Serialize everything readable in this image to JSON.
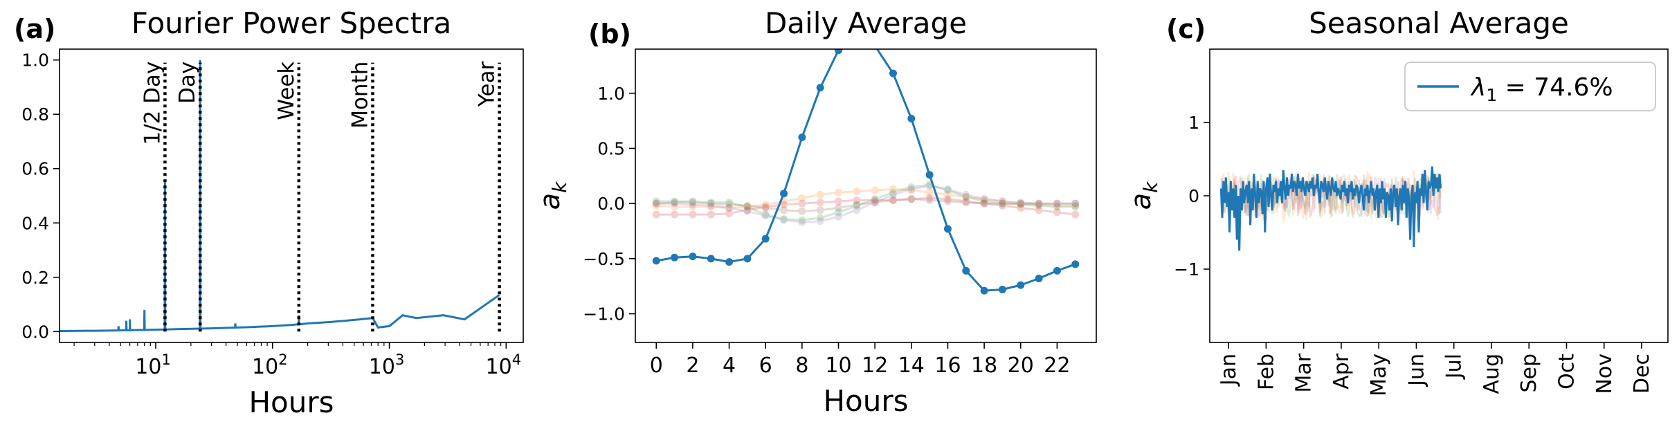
{
  "chart_data": [
    {
      "type": "line",
      "panel_label": "(a)",
      "title": "Fourier Power Spectra",
      "xlabel": "Hours",
      "ylabel": "",
      "xscale": "log",
      "xlim": [
        1.5,
        14000
      ],
      "ylim": [
        -0.04,
        1.04
      ],
      "xticks": [
        {
          "v": 10,
          "base": "10",
          "exp": "1"
        },
        {
          "v": 100,
          "base": "10",
          "exp": "2"
        },
        {
          "v": 1000,
          "base": "10",
          "exp": "3"
        },
        {
          "v": 10000,
          "base": "10",
          "exp": "4"
        }
      ],
      "yticks": [
        {
          "v": 0.0,
          "label": "0.0"
        },
        {
          "v": 0.2,
          "label": "0.2"
        },
        {
          "v": 0.4,
          "label": "0.4"
        },
        {
          "v": 0.6,
          "label": "0.6"
        },
        {
          "v": 0.8,
          "label": "0.8"
        },
        {
          "v": 1.0,
          "label": "1.0"
        }
      ],
      "color": "#1f77b4",
      "vlines": [
        {
          "x": 12,
          "label": "1/2 Day"
        },
        {
          "x": 24,
          "label": "Day"
        },
        {
          "x": 168,
          "label": "Week"
        },
        {
          "x": 720,
          "label": "Month"
        },
        {
          "x": 8760,
          "label": "Year"
        }
      ],
      "spikes": [
        {
          "x": 4.8,
          "y": 0.02
        },
        {
          "x": 5.6,
          "y": 0.04
        },
        {
          "x": 6.0,
          "y": 0.045
        },
        {
          "x": 8.0,
          "y": 0.08
        },
        {
          "x": 12,
          "y": 0.55
        },
        {
          "x": 24,
          "y": 1.0
        },
        {
          "x": 48,
          "y": 0.03
        },
        {
          "x": 168,
          "y": 0.06
        }
      ],
      "envelope": [
        {
          "x": 1.5,
          "y": 0.002
        },
        {
          "x": 3,
          "y": 0.003
        },
        {
          "x": 6,
          "y": 0.005
        },
        {
          "x": 10,
          "y": 0.007
        },
        {
          "x": 15,
          "y": 0.009
        },
        {
          "x": 30,
          "y": 0.012
        },
        {
          "x": 60,
          "y": 0.016
        },
        {
          "x": 100,
          "y": 0.02
        },
        {
          "x": 150,
          "y": 0.025
        },
        {
          "x": 200,
          "y": 0.03
        },
        {
          "x": 300,
          "y": 0.035
        },
        {
          "x": 420,
          "y": 0.04
        },
        {
          "x": 560,
          "y": 0.045
        },
        {
          "x": 720,
          "y": 0.05
        },
        {
          "x": 800,
          "y": 0.015
        },
        {
          "x": 1000,
          "y": 0.02
        },
        {
          "x": 1300,
          "y": 0.06
        },
        {
          "x": 1700,
          "y": 0.05
        },
        {
          "x": 2900,
          "y": 0.06
        },
        {
          "x": 4400,
          "y": 0.045
        },
        {
          "x": 8760,
          "y": 0.135
        }
      ]
    },
    {
      "type": "line",
      "panel_label": "(b)",
      "title": "Daily Average",
      "xlabel": "Hours",
      "ylabel": "a_k",
      "xlim": [
        -1.15,
        24.15
      ],
      "ylim": [
        -1.26,
        1.4
      ],
      "xticks": [
        {
          "v": 0,
          "label": "0"
        },
        {
          "v": 2,
          "label": "2"
        },
        {
          "v": 4,
          "label": "4"
        },
        {
          "v": 6,
          "label": "6"
        },
        {
          "v": 8,
          "label": "8"
        },
        {
          "v": 10,
          "label": "10"
        },
        {
          "v": 12,
          "label": "12"
        },
        {
          "v": 14,
          "label": "14"
        },
        {
          "v": 16,
          "label": "16"
        },
        {
          "v": 18,
          "label": "18"
        },
        {
          "v": 20,
          "label": "20"
        },
        {
          "v": 22,
          "label": "22"
        }
      ],
      "yticks": [
        {
          "v": -1.0,
          "label": "−1.0"
        },
        {
          "v": -0.5,
          "label": "−0.5"
        },
        {
          "v": 0.0,
          "label": "0.0"
        },
        {
          "v": 0.5,
          "label": "0.5"
        },
        {
          "v": 1.0,
          "label": "1.0"
        }
      ],
      "x": [
        0,
        1,
        2,
        3,
        4,
        5,
        6,
        7,
        8,
        9,
        10,
        11,
        12,
        13,
        14,
        15,
        16,
        17,
        18,
        19,
        20,
        21,
        22,
        23
      ],
      "series": [
        {
          "color": "#1f77b4",
          "opacity": 1,
          "values": [
            -0.52,
            -0.49,
            -0.48,
            -0.5,
            -0.53,
            -0.5,
            -0.32,
            0.09,
            0.6,
            1.05,
            1.39,
            1.45,
            1.43,
            1.18,
            0.77,
            0.26,
            -0.23,
            -0.61,
            -0.79,
            -0.78,
            -0.74,
            -0.68,
            -0.61,
            -0.55
          ]
        },
        {
          "color": "#ff7f0e",
          "opacity": 0.22,
          "values": [
            -0.02,
            -0.03,
            -0.03,
            -0.03,
            -0.04,
            -0.03,
            -0.01,
            0.02,
            0.05,
            0.08,
            0.1,
            0.11,
            0.12,
            0.13,
            0.12,
            0.1,
            0.08,
            0.06,
            0.04,
            0.02,
            0.0,
            -0.01,
            -0.02,
            -0.02
          ]
        },
        {
          "color": "#2ca02c",
          "opacity": 0.22,
          "values": [
            0.02,
            0.02,
            0.02,
            0.01,
            0.01,
            -0.03,
            -0.1,
            -0.14,
            -0.15,
            -0.13,
            -0.08,
            -0.02,
            0.04,
            0.1,
            0.15,
            0.17,
            0.12,
            0.06,
            0.02,
            0.0,
            -0.01,
            -0.02,
            -0.03,
            -0.03
          ]
        },
        {
          "color": "#d62728",
          "opacity": 0.22,
          "values": [
            -0.1,
            -0.1,
            -0.1,
            -0.1,
            -0.09,
            -0.06,
            -0.03,
            -0.01,
            0.0,
            0.01,
            0.02,
            0.03,
            0.03,
            0.03,
            0.04,
            0.05,
            0.04,
            0.02,
            0.0,
            -0.02,
            -0.04,
            -0.06,
            -0.08,
            -0.1
          ]
        },
        {
          "color": "#9467bd",
          "opacity": 0.22,
          "values": [
            0.0,
            0.0,
            -0.01,
            -0.02,
            -0.04,
            -0.07,
            -0.11,
            -0.15,
            -0.17,
            -0.16,
            -0.12,
            -0.06,
            0.01,
            0.08,
            0.13,
            0.16,
            0.13,
            0.08,
            0.04,
            0.02,
            0.01,
            0.0,
            0.0,
            0.0
          ]
        },
        {
          "color": "#8c564b",
          "opacity": 0.22,
          "values": [
            0.0,
            0.01,
            0.01,
            0.0,
            -0.01,
            -0.02,
            -0.04,
            -0.06,
            -0.07,
            -0.06,
            -0.04,
            -0.01,
            0.01,
            0.03,
            0.04,
            0.03,
            0.02,
            0.01,
            0.0,
            0.0,
            0.0,
            0.0,
            0.0,
            0.0
          ]
        }
      ]
    },
    {
      "type": "line",
      "panel_label": "(c)",
      "title": "Seasonal Average",
      "xlabel": "",
      "ylabel": "a_k",
      "xlim": [
        0,
        12.2
      ],
      "ylim": [
        -2.0,
        2.0
      ],
      "xticks": [
        {
          "v": 0.5,
          "label": "Jan"
        },
        {
          "v": 1.5,
          "label": "Feb"
        },
        {
          "v": 2.5,
          "label": "Mar"
        },
        {
          "v": 3.5,
          "label": "Apr"
        },
        {
          "v": 4.5,
          "label": "May"
        },
        {
          "v": 5.5,
          "label": "Jun"
        },
        {
          "v": 6.5,
          "label": "Jul"
        },
        {
          "v": 7.5,
          "label": "Aug"
        },
        {
          "v": 8.5,
          "label": "Sep"
        },
        {
          "v": 9.5,
          "label": "Oct"
        },
        {
          "v": 10.5,
          "label": "Nov"
        },
        {
          "v": 11.5,
          "label": "Dec"
        }
      ],
      "yticks": [
        {
          "v": -1,
          "label": "−1"
        },
        {
          "v": 0,
          "label": "0"
        },
        {
          "v": 1,
          "label": "1"
        }
      ],
      "legend": {
        "position": "top-right",
        "symbol": "λ",
        "subscript": "1",
        "text": " = 74.6%"
      },
      "main_series": {
        "color": "#1f77b4",
        "x_start": 0.3,
        "x_step": 0.0325,
        "values": [
          0.1,
          -0.3,
          0.2,
          -0.1,
          0.25,
          -0.15,
          0.05,
          -0.5,
          0.2,
          -0.2,
          0.1,
          -0.3,
          0.15,
          -0.6,
          0.0,
          -0.75,
          0.1,
          -0.2,
          0.2,
          -0.1,
          0.05,
          0.15,
          -0.1,
          0.2,
          -0.4,
          0.1,
          -0.2,
          0.3,
          0.0,
          -0.3,
          0.2,
          -0.1,
          0.1,
          0.05,
          -0.25,
          0.2,
          -0.5,
          0.1,
          0.25,
          -0.15,
          0.3,
          0.0,
          -0.2,
          0.15,
          0.05,
          0.2,
          -0.1,
          0.1,
          0.0,
          0.2,
          -0.1,
          0.35,
          0.1,
          -0.05,
          0.25,
          0.0,
          0.15,
          0.1,
          0.3,
          0.05,
          0.2,
          0.15,
          0.0,
          0.3,
          0.1,
          0.2,
          0.05,
          0.25,
          0.1,
          0.0,
          0.2,
          0.15,
          0.05,
          0.2,
          0.1,
          0.25,
          0.0,
          0.15,
          0.1,
          0.3,
          0.05,
          -0.1,
          0.2,
          0.15,
          0.05,
          0.25,
          0.1,
          -0.05,
          0.2,
          0.1,
          0.0,
          0.25,
          0.1,
          0.05,
          0.2,
          0.0,
          0.1,
          0.05,
          -0.05,
          0.15,
          0.05,
          0.2,
          0.0,
          0.1,
          -0.1,
          0.15,
          0.05,
          0.2,
          -0.05,
          0.1,
          0.0,
          0.15,
          0.1,
          -0.1,
          0.05,
          0.15,
          0.0,
          -0.2,
          0.1,
          0.0,
          0.15,
          -0.1,
          0.05,
          0.2,
          0.0,
          0.1,
          -0.2,
          0.05,
          0.15,
          -0.3,
          0.1,
          -0.1,
          0.2,
          -0.05,
          0.1,
          -0.3,
          0.05,
          0.0,
          -0.2,
          0.1,
          -0.35,
          0.05,
          0.15,
          -0.15,
          0.1,
          -0.4,
          0.0,
          0.1,
          -0.2,
          0.15,
          -0.1,
          0.2,
          -0.3,
          0.1,
          -0.05,
          -0.6,
          0.0,
          0.15,
          -0.7,
          0.05,
          -0.1,
          0.2,
          -0.5,
          0.1,
          0.0,
          0.3,
          -0.1,
          0.35,
          0.05,
          -0.2,
          0.2,
          0.1,
          0.15,
          0.4,
          0.0,
          0.3,
          0.1,
          0.25,
          0.05,
          0.3,
          0.1
        ]
      },
      "faint_series": [
        {
          "color": "#ff7f0e",
          "opacity": 0.18,
          "seed": 3,
          "amp": 0.35
        },
        {
          "color": "#2ca02c",
          "opacity": 0.18,
          "seed": 7,
          "amp": 0.3
        },
        {
          "color": "#d62728",
          "opacity": 0.18,
          "seed": 11,
          "amp": 0.3
        },
        {
          "color": "#9467bd",
          "opacity": 0.18,
          "seed": 19,
          "amp": 0.25
        }
      ]
    }
  ]
}
